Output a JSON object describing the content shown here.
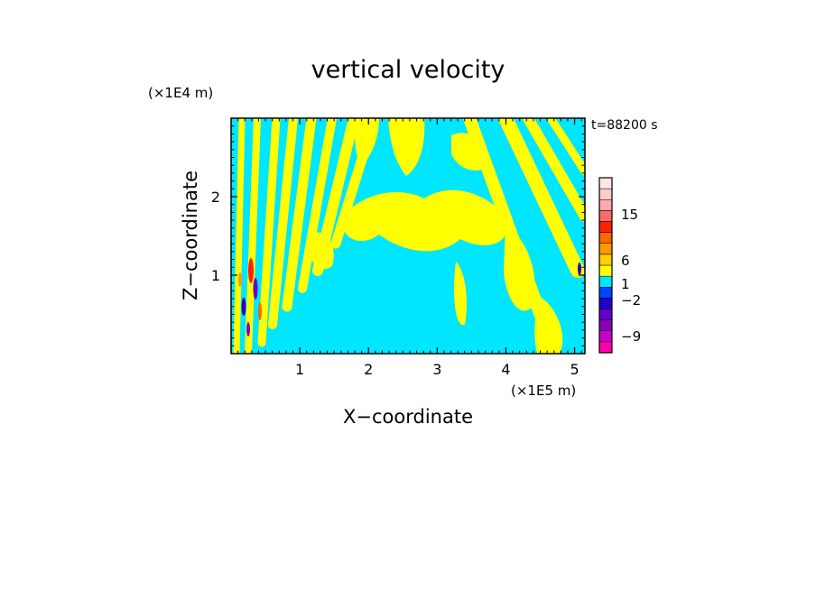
{
  "chart_data": {
    "type": "heatmap",
    "title": "vertical velocity",
    "xlabel": "X−coordinate",
    "ylabel": "Z−coordinate",
    "x_unit": "(×1E5 m)",
    "y_unit": "(×1E4 m)",
    "time_label": "t=88200 s",
    "xlim": [
      0,
      5.15
    ],
    "ylim": [
      0,
      3.0
    ],
    "x_ticks": [
      1,
      2,
      3,
      4,
      5
    ],
    "y_ticks": [
      1,
      2
    ],
    "colorbar": {
      "levels": [
        {
          "color": "#ff00aa"
        },
        {
          "color": "#cc00cc"
        },
        {
          "color": "#8800bb"
        },
        {
          "color": "#6600cc"
        },
        {
          "color": "#2200cc"
        },
        {
          "color": "#0044ff"
        },
        {
          "color": "#00e6ff"
        },
        {
          "color": "#ffff00"
        },
        {
          "color": "#ffd000"
        },
        {
          "color": "#ff9900"
        },
        {
          "color": "#ff6600"
        },
        {
          "color": "#ff2200"
        },
        {
          "color": "#ff6a6a"
        },
        {
          "color": "#ffaaaa"
        },
        {
          "color": "#ffcccc"
        },
        {
          "color": "#ffe6e6"
        }
      ],
      "labels": [
        {
          "text": "15",
          "value": 15
        },
        {
          "text": "6",
          "value": 6
        },
        {
          "text": "1",
          "value": 1
        },
        {
          "text": "−2",
          "value": -2
        },
        {
          "text": "−9",
          "value": -9
        }
      ]
    }
  }
}
